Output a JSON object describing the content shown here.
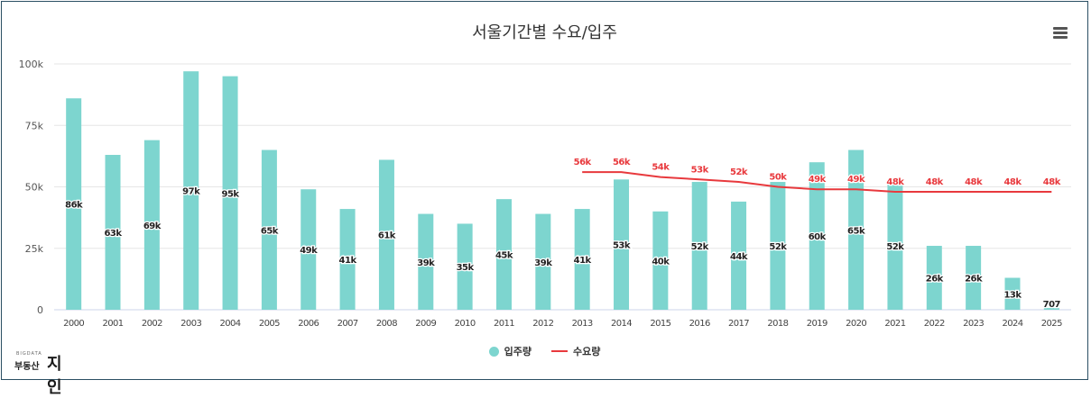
{
  "chart_data": {
    "type": "bar",
    "title": "서울기간별 수요/입주",
    "categories": [
      "2000",
      "2001",
      "2002",
      "2003",
      "2004",
      "2005",
      "2006",
      "2007",
      "2008",
      "2009",
      "2010",
      "2011",
      "2012",
      "2013",
      "2014",
      "2015",
      "2016",
      "2017",
      "2018",
      "2019",
      "2020",
      "2021",
      "2022",
      "2023",
      "2024",
      "2025"
    ],
    "ylim": [
      0,
      100000
    ],
    "yticks": [
      0,
      25000,
      50000,
      75000,
      100000
    ],
    "ytick_labels": [
      "0",
      "25k",
      "50k",
      "75k",
      "100k"
    ],
    "grid": true,
    "legend_position": "bottom-center",
    "series": [
      {
        "name": "입주량",
        "type": "bar",
        "color": "#7dd5cf",
        "values": [
          86000,
          63000,
          69000,
          97000,
          95000,
          65000,
          49000,
          41000,
          61000,
          39000,
          35000,
          45000,
          39000,
          41000,
          53000,
          40000,
          52000,
          44000,
          52000,
          60000,
          65000,
          52000,
          26000,
          26000,
          13000,
          707
        ],
        "labels": [
          "86k",
          "63k",
          "69k",
          "97k",
          "95k",
          "65k",
          "49k",
          "41k",
          "61k",
          "39k",
          "35k",
          "45k",
          "39k",
          "41k",
          "53k",
          "40k",
          "52k",
          "44k",
          "52k",
          "60k",
          "65k",
          "52k",
          "26k",
          "26k",
          "13k",
          "707"
        ]
      },
      {
        "name": "수요량",
        "type": "line",
        "color": "#e8393d",
        "values": [
          null,
          null,
          null,
          null,
          null,
          null,
          null,
          null,
          null,
          null,
          null,
          null,
          null,
          56000,
          56000,
          54000,
          53000,
          52000,
          50000,
          49000,
          49000,
          48000,
          48000,
          48000,
          48000,
          48000
        ],
        "labels": [
          null,
          null,
          null,
          null,
          null,
          null,
          null,
          null,
          null,
          null,
          null,
          null,
          null,
          "56k",
          "56k",
          "54k",
          "53k",
          "52k",
          "50k",
          "49k",
          "49k",
          "48k",
          "48k",
          "48k",
          "48k",
          "48k"
        ]
      }
    ]
  },
  "logo": {
    "small": "BIGDATA",
    "main": "부동산",
    "big": "지인"
  },
  "icons": {
    "menu": "hamburger-menu-icon"
  }
}
